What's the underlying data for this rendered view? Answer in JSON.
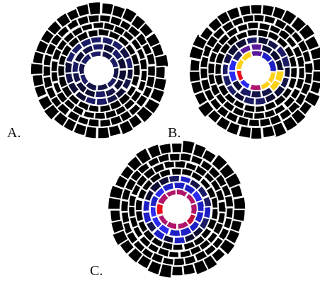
{
  "panels": [
    {
      "id": "a",
      "label": "A.",
      "scheme": "dark_uniform"
    },
    {
      "id": "b",
      "label": "B.",
      "scheme": "hot_spots"
    },
    {
      "id": "c",
      "label": "C.",
      "scheme": "ring_gradient"
    }
  ],
  "colors": {
    "background": "#ffffff",
    "cell_outer": "#000000",
    "cell_border": "#ffffff",
    "navy_1": "#0d0d33",
    "navy_2": "#141448",
    "navy_3": "#1c1c66",
    "blue": "#1f1fc6",
    "bright_blue": "#2b2bf0",
    "purple": "#5a1a9a",
    "magenta": "#b0146b",
    "crimson": "#c0103a",
    "red": "#e8101a",
    "orange": "#ff9a10",
    "yellow": "#ffd21a"
  }
}
